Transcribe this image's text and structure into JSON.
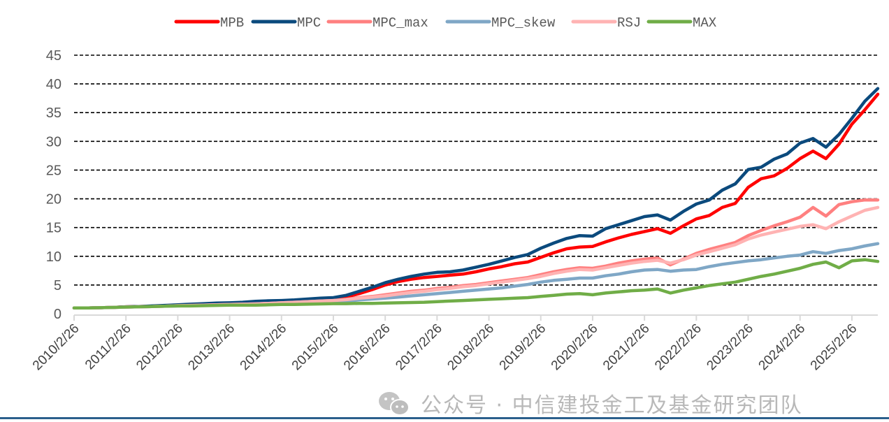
{
  "chart_data": {
    "type": "line",
    "title": "",
    "xlabel": "",
    "ylabel": "",
    "ylim": [
      0,
      45
    ],
    "yticks": [
      0,
      5,
      10,
      15,
      20,
      25,
      30,
      35,
      40,
      45
    ],
    "xlim": [
      2010.15,
      2025.65
    ],
    "xtick_labels": [
      "2010/2/26",
      "2011/2/26",
      "2012/2/26",
      "2013/2/26",
      "2014/2/26",
      "2015/2/26",
      "2016/2/26",
      "2017/2/26",
      "2018/2/26",
      "2019/2/26",
      "2020/2/26",
      "2021/2/26",
      "2022/2/26",
      "2023/2/26",
      "2024/2/26",
      "2025/2/26"
    ],
    "xtick_values": [
      2010.15,
      2011.15,
      2012.15,
      2013.15,
      2014.15,
      2015.15,
      2016.15,
      2017.15,
      2018.15,
      2019.15,
      2020.15,
      2021.15,
      2022.15,
      2023.15,
      2024.15,
      2025.15
    ],
    "grid": "horizontal-dashed",
    "legend_position": "top-center",
    "x": [
      2010.15,
      2010.4,
      2010.65,
      2010.9,
      2011.15,
      2011.4,
      2011.65,
      2011.9,
      2012.15,
      2012.4,
      2012.65,
      2012.9,
      2013.15,
      2013.4,
      2013.65,
      2013.9,
      2014.15,
      2014.4,
      2014.65,
      2014.9,
      2015.15,
      2015.4,
      2015.65,
      2015.9,
      2016.15,
      2016.4,
      2016.65,
      2016.9,
      2017.15,
      2017.4,
      2017.65,
      2017.9,
      2018.15,
      2018.4,
      2018.65,
      2018.9,
      2019.15,
      2019.4,
      2019.65,
      2019.9,
      2020.15,
      2020.4,
      2020.65,
      2020.9,
      2021.15,
      2021.4,
      2021.65,
      2021.9,
      2022.15,
      2022.4,
      2022.65,
      2022.9,
      2023.15,
      2023.4,
      2023.65,
      2023.9,
      2024.15,
      2024.4,
      2024.65,
      2024.9,
      2025.15,
      2025.4,
      2025.65
    ],
    "series": [
      {
        "name": "MPB",
        "color": "#ff0000",
        "values": [
          1.0,
          1.0,
          1.05,
          1.1,
          1.2,
          1.25,
          1.3,
          1.4,
          1.5,
          1.55,
          1.65,
          1.75,
          1.8,
          1.9,
          2.0,
          2.1,
          2.2,
          2.3,
          2.4,
          2.5,
          2.6,
          2.9,
          3.5,
          4.2,
          5.0,
          5.6,
          6.0,
          6.3,
          6.5,
          6.7,
          6.9,
          7.3,
          7.8,
          8.2,
          8.7,
          9.0,
          9.8,
          10.6,
          11.3,
          11.6,
          11.7,
          12.5,
          13.2,
          13.8,
          14.3,
          14.8,
          14.0,
          15.3,
          16.5,
          17.1,
          18.5,
          19.2,
          22.0,
          23.5,
          24.0,
          25.3,
          27.0,
          28.3,
          27.0,
          29.5,
          33.0,
          35.5,
          38.2
        ]
      },
      {
        "name": "MPC",
        "color": "#0b4a7d",
        "values": [
          1.0,
          1.0,
          1.05,
          1.1,
          1.2,
          1.25,
          1.35,
          1.45,
          1.55,
          1.65,
          1.75,
          1.85,
          1.9,
          2.0,
          2.15,
          2.25,
          2.3,
          2.4,
          2.55,
          2.7,
          2.8,
          3.2,
          3.9,
          4.6,
          5.4,
          6.0,
          6.5,
          6.9,
          7.2,
          7.3,
          7.6,
          8.1,
          8.6,
          9.2,
          9.8,
          10.3,
          11.4,
          12.3,
          13.1,
          13.6,
          13.5,
          14.8,
          15.5,
          16.2,
          16.9,
          17.2,
          16.3,
          17.8,
          19.1,
          19.8,
          21.5,
          22.6,
          25.1,
          25.5,
          26.9,
          27.8,
          29.7,
          30.5,
          29.0,
          31.2,
          34.0,
          37.0,
          39.2
        ]
      },
      {
        "name": "MPC_max",
        "color": "#ff8080",
        "values": [
          1.0,
          1.0,
          1.05,
          1.1,
          1.15,
          1.2,
          1.25,
          1.3,
          1.4,
          1.45,
          1.5,
          1.55,
          1.6,
          1.65,
          1.7,
          1.8,
          1.9,
          2.0,
          2.1,
          2.2,
          2.3,
          2.5,
          2.8,
          3.0,
          3.3,
          3.6,
          3.9,
          4.1,
          4.4,
          4.6,
          4.9,
          5.1,
          5.4,
          5.7,
          6.0,
          6.3,
          6.8,
          7.3,
          7.7,
          8.0,
          7.9,
          8.3,
          8.8,
          9.2,
          9.5,
          9.7,
          8.5,
          9.5,
          10.5,
          11.2,
          11.8,
          12.4,
          13.6,
          14.5,
          15.3,
          16.0,
          16.8,
          18.5,
          17.0,
          19.0,
          19.5,
          19.8,
          19.8
        ]
      },
      {
        "name": "MPC_skew",
        "color": "#7fa7c6",
        "values": [
          1.0,
          1.0,
          1.05,
          1.1,
          1.15,
          1.2,
          1.25,
          1.3,
          1.35,
          1.4,
          1.45,
          1.5,
          1.55,
          1.6,
          1.65,
          1.7,
          1.8,
          1.85,
          1.9,
          2.0,
          2.1,
          2.2,
          2.4,
          2.55,
          2.7,
          2.9,
          3.1,
          3.3,
          3.5,
          3.7,
          3.9,
          4.1,
          4.3,
          4.5,
          4.8,
          5.1,
          5.5,
          5.8,
          6.0,
          6.2,
          6.2,
          6.6,
          6.9,
          7.3,
          7.6,
          7.7,
          7.4,
          7.6,
          7.7,
          8.2,
          8.6,
          8.9,
          9.2,
          9.4,
          9.7,
          10.0,
          10.2,
          10.8,
          10.5,
          11.0,
          11.3,
          11.8,
          12.2
        ]
      },
      {
        "name": "RSJ",
        "color": "#ffb3b3",
        "values": [
          1.0,
          1.0,
          1.05,
          1.1,
          1.15,
          1.2,
          1.25,
          1.3,
          1.4,
          1.45,
          1.5,
          1.55,
          1.6,
          1.65,
          1.7,
          1.8,
          1.9,
          2.0,
          2.1,
          2.2,
          2.3,
          2.45,
          2.7,
          2.9,
          3.1,
          3.4,
          3.7,
          3.9,
          4.2,
          4.4,
          4.7,
          4.9,
          5.2,
          5.5,
          5.8,
          6.1,
          6.5,
          7.0,
          7.4,
          7.7,
          7.6,
          8.0,
          8.4,
          8.8,
          9.1,
          9.3,
          8.8,
          9.4,
          10.2,
          10.8,
          11.4,
          12.0,
          13.0,
          13.7,
          14.2,
          14.7,
          15.2,
          15.5,
          14.8,
          16.0,
          17.0,
          18.0,
          18.5
        ]
      },
      {
        "name": "MAX",
        "color": "#70ad47",
        "values": [
          1.0,
          1.0,
          1.05,
          1.1,
          1.15,
          1.2,
          1.25,
          1.3,
          1.35,
          1.35,
          1.4,
          1.45,
          1.5,
          1.5,
          1.5,
          1.55,
          1.6,
          1.6,
          1.65,
          1.7,
          1.75,
          1.75,
          1.8,
          1.8,
          1.85,
          1.9,
          1.95,
          2.0,
          2.1,
          2.2,
          2.3,
          2.4,
          2.5,
          2.6,
          2.7,
          2.8,
          3.0,
          3.2,
          3.4,
          3.5,
          3.3,
          3.6,
          3.8,
          4.0,
          4.1,
          4.3,
          3.6,
          4.1,
          4.5,
          4.9,
          5.2,
          5.5,
          6.0,
          6.5,
          6.9,
          7.4,
          7.9,
          8.6,
          9.0,
          8.0,
          9.2,
          9.4,
          9.1
        ]
      }
    ]
  },
  "watermark": {
    "icon": "wechat-icon",
    "text": "公众号 · 中信建投金工及基金研究团队"
  }
}
